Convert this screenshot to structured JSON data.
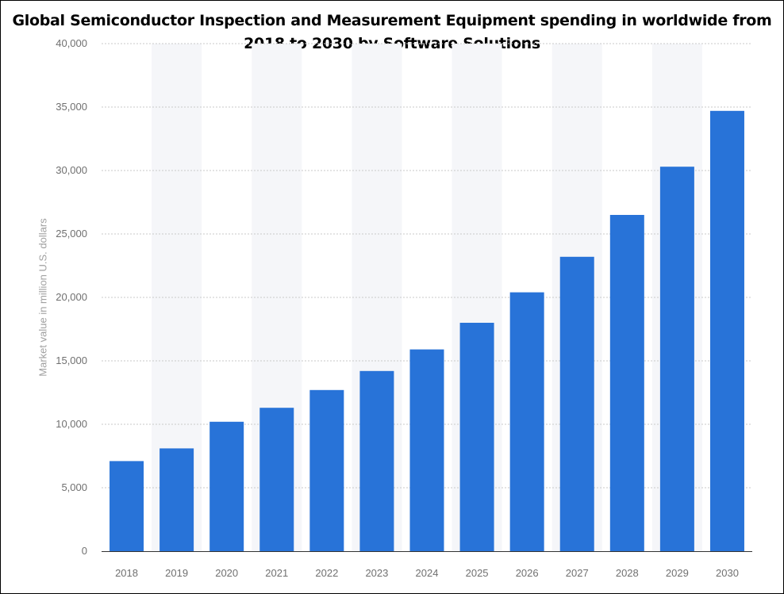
{
  "chart_data": {
    "type": "bar",
    "title_lines": [
      "Global Semiconductor Inspection and Measurement Equipment spending in worldwide from",
      "2018 to 2030 by Software Solutions"
    ],
    "xlabel": "",
    "ylabel": "Market value in million U.S. dollars",
    "categories": [
      "2018",
      "2019",
      "2020",
      "2021",
      "2022",
      "2023",
      "2024",
      "2025",
      "2026",
      "2027",
      "2028",
      "2029",
      "2030"
    ],
    "values": [
      7100,
      8100,
      10200,
      11300,
      12700,
      14200,
      15900,
      18000,
      20400,
      23200,
      26500,
      30300,
      34700
    ],
    "ylim": [
      0,
      40000
    ],
    "yticks": [
      0,
      5000,
      10000,
      15000,
      20000,
      25000,
      30000,
      35000,
      40000
    ],
    "ytick_labels": [
      "0",
      "5,000",
      "10,000",
      "15,000",
      "20,000",
      "25,000",
      "30,000",
      "35,000",
      "40,000"
    ],
    "grid": true,
    "bar_color": "#2873d8",
    "band_color": "#f5f6f9",
    "grid_color": "#c9c9c9"
  }
}
